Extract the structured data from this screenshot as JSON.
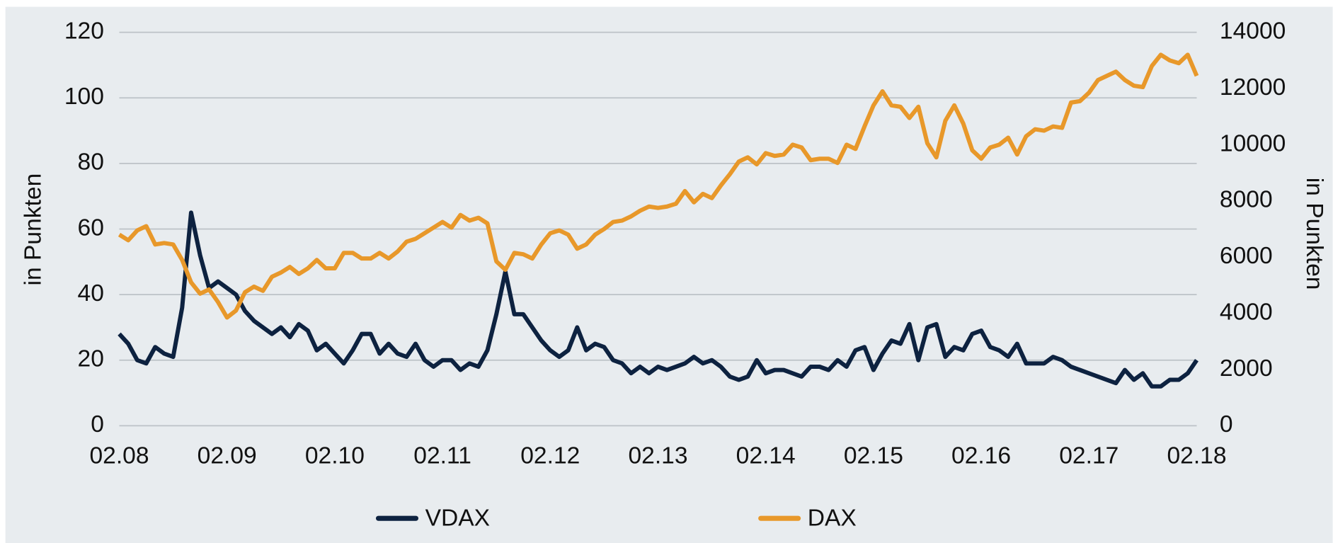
{
  "chart_data": {
    "type": "line",
    "categories": [
      "02.08",
      null,
      null,
      null,
      null,
      null,
      null,
      null,
      null,
      null,
      null,
      null,
      "02.09",
      null,
      null,
      null,
      null,
      null,
      null,
      null,
      null,
      null,
      null,
      null,
      "02.10",
      null,
      null,
      null,
      null,
      null,
      null,
      null,
      null,
      null,
      null,
      null,
      "02.11",
      null,
      null,
      null,
      null,
      null,
      null,
      null,
      null,
      null,
      null,
      null,
      "02.12",
      null,
      null,
      null,
      null,
      null,
      null,
      null,
      null,
      null,
      null,
      null,
      "02.13",
      null,
      null,
      null,
      null,
      null,
      null,
      null,
      null,
      null,
      null,
      null,
      "02.14",
      null,
      null,
      null,
      null,
      null,
      null,
      null,
      null,
      null,
      null,
      null,
      "02.15",
      null,
      null,
      null,
      null,
      null,
      null,
      null,
      null,
      null,
      null,
      null,
      "02.16",
      null,
      null,
      null,
      null,
      null,
      null,
      null,
      null,
      null,
      null,
      null,
      "02.17",
      null,
      null,
      null,
      null,
      null,
      null,
      null,
      null,
      null,
      null,
      null,
      "02.18"
    ],
    "series": [
      {
        "name": "VDAX",
        "color": "#0d2240",
        "values": [
          28,
          25,
          20,
          19,
          24,
          22,
          21,
          36,
          65,
          52,
          42,
          44,
          42,
          40,
          35,
          32,
          30,
          28,
          30,
          27,
          31,
          29,
          23,
          25,
          22,
          19,
          23,
          28,
          28,
          22,
          25,
          22,
          21,
          25,
          20,
          18,
          20,
          20,
          17,
          19,
          18,
          23,
          34,
          47,
          34,
          34,
          30,
          26,
          23,
          21,
          23,
          30,
          23,
          25,
          24,
          20,
          19,
          16,
          18,
          16,
          18,
          17,
          18,
          19,
          21,
          19,
          20,
          18,
          15,
          14,
          15,
          20,
          16,
          17,
          17,
          16,
          15,
          18,
          18,
          17,
          20,
          18,
          23,
          24,
          17,
          22,
          26,
          25,
          31,
          20,
          30,
          31,
          21,
          24,
          23,
          28,
          29,
          24,
          23,
          21,
          25,
          19,
          19,
          19,
          21,
          20,
          18,
          17,
          16,
          15,
          14,
          13,
          17,
          14,
          16,
          12,
          12,
          14,
          14,
          16,
          20
        ]
      },
      {
        "name": "DAX",
        "color": "#e8982a",
        "axis": "y2",
        "values": [
          6800,
          6600,
          6950,
          7100,
          6450,
          6500,
          6450,
          5900,
          5100,
          4700,
          4850,
          4400,
          3850,
          4100,
          4750,
          4950,
          4800,
          5300,
          5450,
          5650,
          5400,
          5600,
          5900,
          5600,
          5600,
          6150,
          6150,
          5950,
          5950,
          6150,
          5950,
          6200,
          6550,
          6650,
          6850,
          7050,
          7250,
          7050,
          7500,
          7300,
          7400,
          7200,
          5850,
          5550,
          6150,
          6100,
          5950,
          6450,
          6850,
          6950,
          6800,
          6300,
          6450,
          6800,
          7000,
          7250,
          7300,
          7450,
          7650,
          7800,
          7750,
          7800,
          7900,
          8350,
          7950,
          8250,
          8100,
          8550,
          8950,
          9400,
          9550,
          9300,
          9700,
          9600,
          9650,
          10000,
          9900,
          9450,
          9500,
          9500,
          9350,
          10000,
          9850,
          10650,
          11400,
          11900,
          11400,
          11350,
          10950,
          11350,
          10050,
          9550,
          10850,
          11400,
          10750,
          9800,
          9500,
          9900,
          10000,
          10250,
          9650,
          10300,
          10550,
          10500,
          10650,
          10600,
          11500,
          11550,
          11850,
          12300,
          12450,
          12600,
          12300,
          12100,
          12050,
          12800,
          13200,
          13000,
          12900,
          13200,
          12450
        ]
      }
    ],
    "ylabel": "in Punkten",
    "y2label": "in Punkten",
    "ylim": [
      0,
      120
    ],
    "yticks": [
      0,
      20,
      40,
      60,
      80,
      100,
      120
    ],
    "y2lim": [
      0,
      14000
    ],
    "y2ticks": [
      0,
      2000,
      4000,
      6000,
      8000,
      10000,
      12000,
      14000
    ],
    "grid": true
  }
}
